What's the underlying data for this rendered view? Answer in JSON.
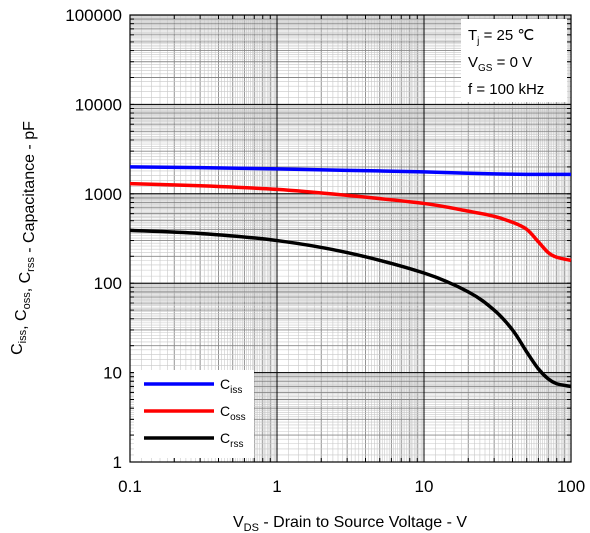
{
  "chart_data": {
    "type": "line",
    "xscale": "log",
    "yscale": "log",
    "xlim": [
      0.1,
      100
    ],
    "ylim": [
      1,
      100000
    ],
    "grid": true,
    "x_tick_labels": [
      "0.1",
      "1",
      "10",
      "100"
    ],
    "y_tick_labels": [
      "1",
      "10",
      "100",
      "1000",
      "10000",
      "100000"
    ],
    "xlabel": {
      "main": "V",
      "sub": "DS",
      "rest": " - Drain to Source Voltage - V"
    },
    "ylabel": {
      "parts": [
        {
          "t": "C",
          "s": "iss"
        },
        {
          "t": ",  C",
          "s": "oss"
        },
        {
          "t": ",  C",
          "s": "rss"
        },
        {
          "t": " - Capacitance - pF",
          "s": ""
        }
      ]
    },
    "conditions": [
      {
        "main": "T",
        "sub": "j",
        "rest": " = 25 ℃"
      },
      {
        "main": "V",
        "sub": "GS",
        "rest": " = 0 V"
      },
      {
        "main": "f = 100 kHz",
        "sub": "",
        "rest": ""
      }
    ],
    "legend_position": "bottom-left",
    "series": [
      {
        "name": {
          "main": "C",
          "sub": "iss"
        },
        "color": "#0000ff",
        "x": [
          0.1,
          0.3,
          1,
          3,
          10,
          20,
          30,
          50,
          70,
          100
        ],
        "y": [
          2000,
          1960,
          1900,
          1830,
          1760,
          1700,
          1670,
          1650,
          1650,
          1650
        ]
      },
      {
        "name": {
          "main": "C",
          "sub": "oss"
        },
        "color": "#ff0000",
        "x": [
          0.1,
          0.3,
          1,
          3,
          10,
          20,
          30,
          40,
          50,
          60,
          70,
          80,
          100
        ],
        "y": [
          1300,
          1230,
          1120,
          960,
          780,
          640,
          560,
          480,
          400,
          290,
          220,
          195,
          180
        ]
      },
      {
        "name": {
          "main": "C",
          "sub": "rss"
        },
        "color": "#000000",
        "x": [
          0.1,
          0.3,
          1,
          3,
          10,
          20,
          30,
          40,
          50,
          60,
          70,
          80,
          100
        ],
        "y": [
          390,
          360,
          300,
          220,
          130,
          80,
          50,
          30,
          17,
          11,
          8.5,
          7.5,
          7
        ]
      }
    ]
  }
}
